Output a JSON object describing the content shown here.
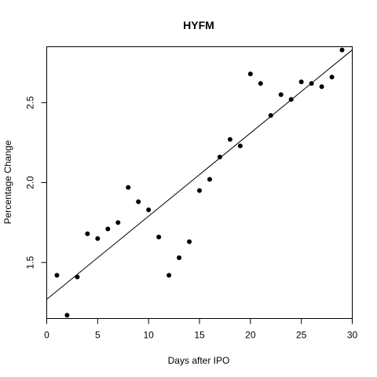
{
  "chart_data": {
    "type": "scatter",
    "title": "HYFM",
    "xlabel": "Days after IPO",
    "ylabel": "Percentage Change",
    "xlim": [
      0,
      30
    ],
    "ylim": [
      1.15,
      2.85
    ],
    "xticks": [
      0,
      5,
      10,
      15,
      20,
      25,
      30
    ],
    "yticks": [
      1.5,
      2.0,
      2.5
    ],
    "xtick_labels": [
      "0",
      "5",
      "10",
      "15",
      "20",
      "25",
      "30"
    ],
    "ytick_labels": [
      "1.5",
      "2.0",
      "2.5"
    ],
    "grid": false,
    "legend": "none",
    "points": [
      {
        "x": 1,
        "y": 1.42
      },
      {
        "x": 2,
        "y": 1.17
      },
      {
        "x": 3,
        "y": 1.41
      },
      {
        "x": 4,
        "y": 1.68
      },
      {
        "x": 5,
        "y": 1.65
      },
      {
        "x": 6,
        "y": 1.71
      },
      {
        "x": 7,
        "y": 1.75
      },
      {
        "x": 8,
        "y": 1.97
      },
      {
        "x": 9,
        "y": 1.88
      },
      {
        "x": 10,
        "y": 1.83
      },
      {
        "x": 11,
        "y": 1.66
      },
      {
        "x": 12,
        "y": 1.42
      },
      {
        "x": 13,
        "y": 1.53
      },
      {
        "x": 14,
        "y": 1.63
      },
      {
        "x": 15,
        "y": 1.95
      },
      {
        "x": 16,
        "y": 2.02
      },
      {
        "x": 17,
        "y": 2.16
      },
      {
        "x": 18,
        "y": 2.27
      },
      {
        "x": 19,
        "y": 2.23
      },
      {
        "x": 20,
        "y": 2.68
      },
      {
        "x": 21,
        "y": 2.62
      },
      {
        "x": 22,
        "y": 2.42
      },
      {
        "x": 23,
        "y": 2.55
      },
      {
        "x": 24,
        "y": 2.52
      },
      {
        "x": 25,
        "y": 2.63
      },
      {
        "x": 26,
        "y": 2.62
      },
      {
        "x": 27,
        "y": 2.6
      },
      {
        "x": 28,
        "y": 2.66
      },
      {
        "x": 29,
        "y": 2.83
      }
    ],
    "fit_line": {
      "intercept": 1.27,
      "slope": 0.052
    }
  }
}
